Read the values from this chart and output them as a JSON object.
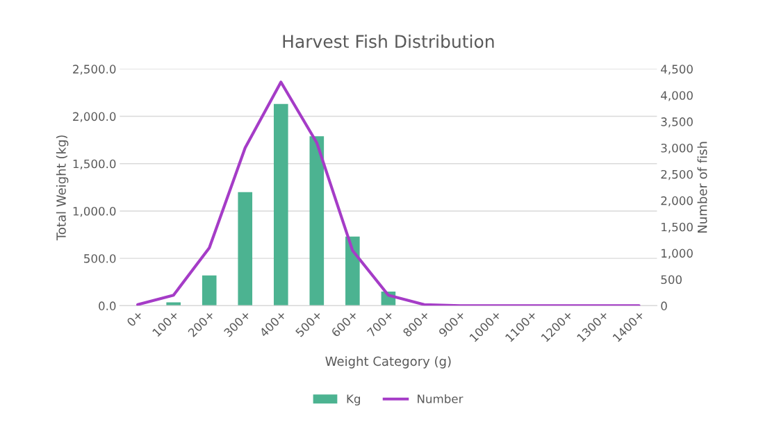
{
  "chart_data": {
    "type": "bar",
    "title": "Harvest Fish Distribution",
    "xlabel": "Weight Category (g)",
    "ylabel": "Total Weight (kg)",
    "y2label": "Number of fish",
    "categories": [
      "0+",
      "100+",
      "200+",
      "300+",
      "400+",
      "500+",
      "600+",
      "700+",
      "800+",
      "900+",
      "1000+",
      "1100+",
      "1200+",
      "1300+",
      "1400+"
    ],
    "series": [
      {
        "name": "Kg",
        "color": "#4cb391",
        "values": [
          0,
          35,
          320,
          1200,
          2130,
          1790,
          730,
          150,
          0,
          0,
          0,
          0,
          0,
          0,
          0
        ]
      },
      {
        "name": "Number",
        "type": "line",
        "axis": "y2",
        "color": "#a53cc7",
        "values": [
          20,
          200,
          1100,
          3000,
          4250,
          3100,
          1050,
          200,
          20,
          0,
          0,
          0,
          0,
          0,
          0
        ]
      }
    ],
    "ylim": [
      0,
      2500
    ],
    "yticks": [
      {
        "value": 0,
        "label": "0.0"
      },
      {
        "value": 500,
        "label": "500.0"
      },
      {
        "value": 1000,
        "label": "1,000.0"
      },
      {
        "value": 1500,
        "label": "1,500.0"
      },
      {
        "value": 2000,
        "label": "2,000.0"
      },
      {
        "value": 2500,
        "label": "2,500.0"
      }
    ],
    "y2lim": [
      0,
      4500
    ],
    "y2ticks": [
      0,
      500,
      {
        "value": 1000,
        "label": "1,000"
      },
      {
        "value": 1500,
        "label": "1,500"
      },
      {
        "value": 2000,
        "label": "2,000"
      },
      {
        "value": 2500,
        "label": "2,500"
      },
      {
        "value": 3000,
        "label": "3,000"
      },
      {
        "value": 3500,
        "label": "3,500"
      },
      {
        "value": 4000,
        "label": "4,000"
      },
      {
        "value": 4500,
        "label": "4,500"
      }
    ],
    "grid": "y",
    "legend": "bottom"
  }
}
